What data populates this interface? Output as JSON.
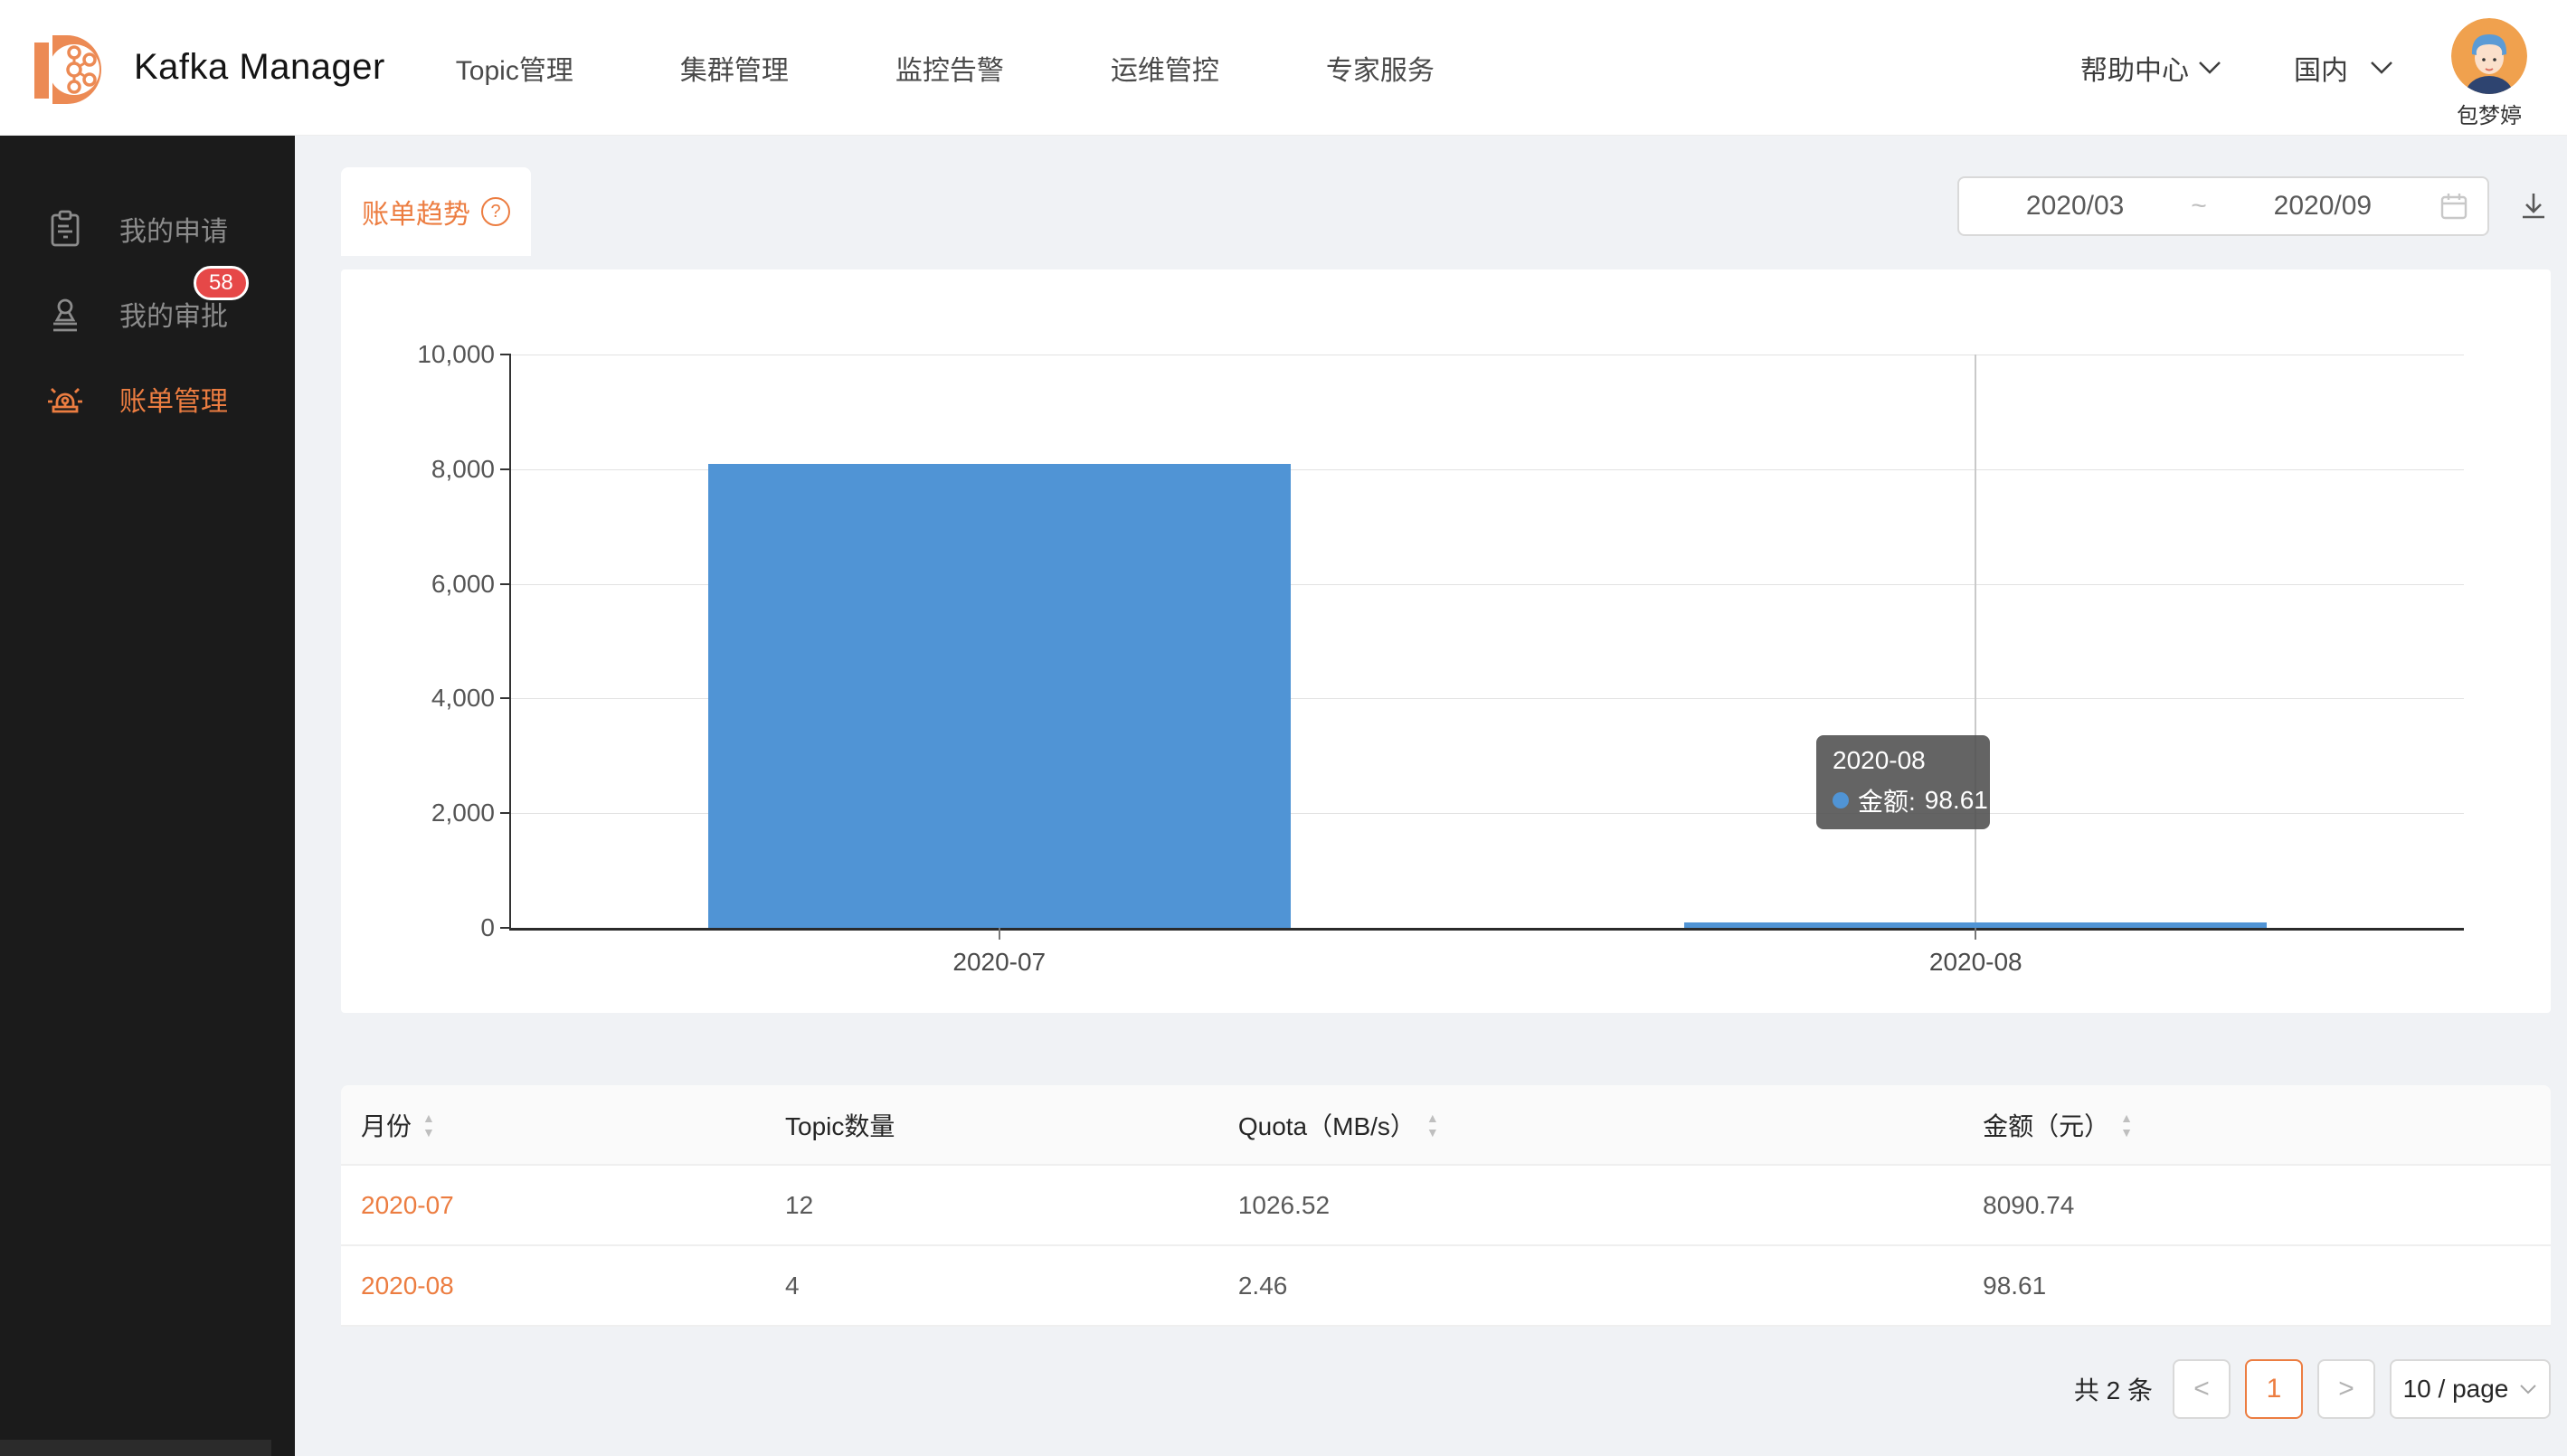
{
  "colors": {
    "accent": "#ec7d41",
    "bar_blue": "#5094d5",
    "badge_red": "#e64848",
    "sidebar_bg": "#1b1b1b"
  },
  "header": {
    "brand": "Kafka Manager",
    "nav": [
      {
        "label": "Topic管理"
      },
      {
        "label": "集群管理"
      },
      {
        "label": "监控告警"
      },
      {
        "label": "运维管控"
      },
      {
        "label": "专家服务"
      }
    ],
    "help_label": "帮助中心",
    "region_label": "国内",
    "username": "包梦婷"
  },
  "sidebar": {
    "items": [
      {
        "label": "我的申请",
        "icon": "clipboard-icon",
        "active": false
      },
      {
        "label": "我的审批",
        "icon": "stamp-icon",
        "badge": "58",
        "active": false
      },
      {
        "label": "账单管理",
        "icon": "siren-icon",
        "active": true
      }
    ]
  },
  "toolbar": {
    "tab_label": "账单趋势",
    "help_glyph": "?",
    "date_start": "2020/03",
    "date_separator": "~",
    "date_end": "2020/09"
  },
  "chart_data": {
    "type": "bar",
    "categories": [
      "2020-07",
      "2020-08"
    ],
    "series": [
      {
        "name": "金额",
        "values": [
          8090.74,
          98.61
        ]
      }
    ],
    "title": "",
    "xlabel": "",
    "ylabel": "",
    "ylim": [
      0,
      10000
    ],
    "yticks": [
      0,
      2000,
      4000,
      6000,
      8000,
      10000
    ],
    "ytick_labels": [
      "0",
      "2,000",
      "4,000",
      "6,000",
      "8,000",
      "10,000"
    ],
    "grid": true,
    "legend_position": "none",
    "bar_color": "#5094d5",
    "crosshair_category": "2020-08"
  },
  "tooltip": {
    "title": "2020-08",
    "series_label": "金额:",
    "value": "98.61"
  },
  "table": {
    "columns": [
      {
        "label": "月份",
        "sortable": true
      },
      {
        "label": "Topic数量",
        "sortable": false
      },
      {
        "label": "Quota（MB/s）",
        "sortable": true
      },
      {
        "label": "金额（元）",
        "sortable": true
      }
    ],
    "rows": [
      [
        "2020-07",
        "12",
        "1026.52",
        "8090.74"
      ],
      [
        "2020-08",
        "4",
        "2.46",
        "98.61"
      ]
    ]
  },
  "pagination": {
    "total_text": "共 2 条",
    "prev_glyph": "<",
    "next_glyph": ">",
    "current_page": "1",
    "page_size_label": "10 / page"
  }
}
